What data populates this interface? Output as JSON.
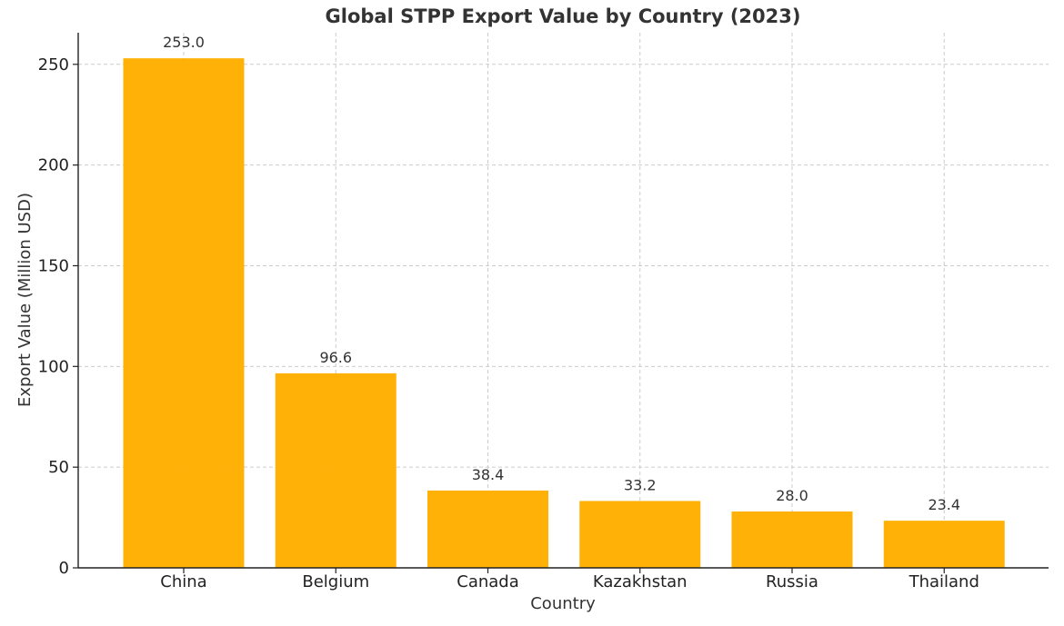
{
  "chart_data": {
    "type": "bar",
    "title": "Global STPP Export Value by Country (2023)",
    "xlabel": "Country",
    "ylabel": "Export Value (Million USD)",
    "categories": [
      "China",
      "Belgium",
      "Canada",
      "Kazakhstan",
      "Russia",
      "Thailand"
    ],
    "values": [
      253.0,
      96.6,
      38.4,
      33.2,
      28.0,
      23.4
    ],
    "data_labels": [
      "253.0",
      "96.6",
      "38.4",
      "33.2",
      "28.0",
      "23.4"
    ],
    "yticks": [
      0,
      50,
      100,
      150,
      200,
      250
    ],
    "ylim": [
      0,
      265.7
    ],
    "grid": true,
    "bar_color": "#FFAE00"
  }
}
